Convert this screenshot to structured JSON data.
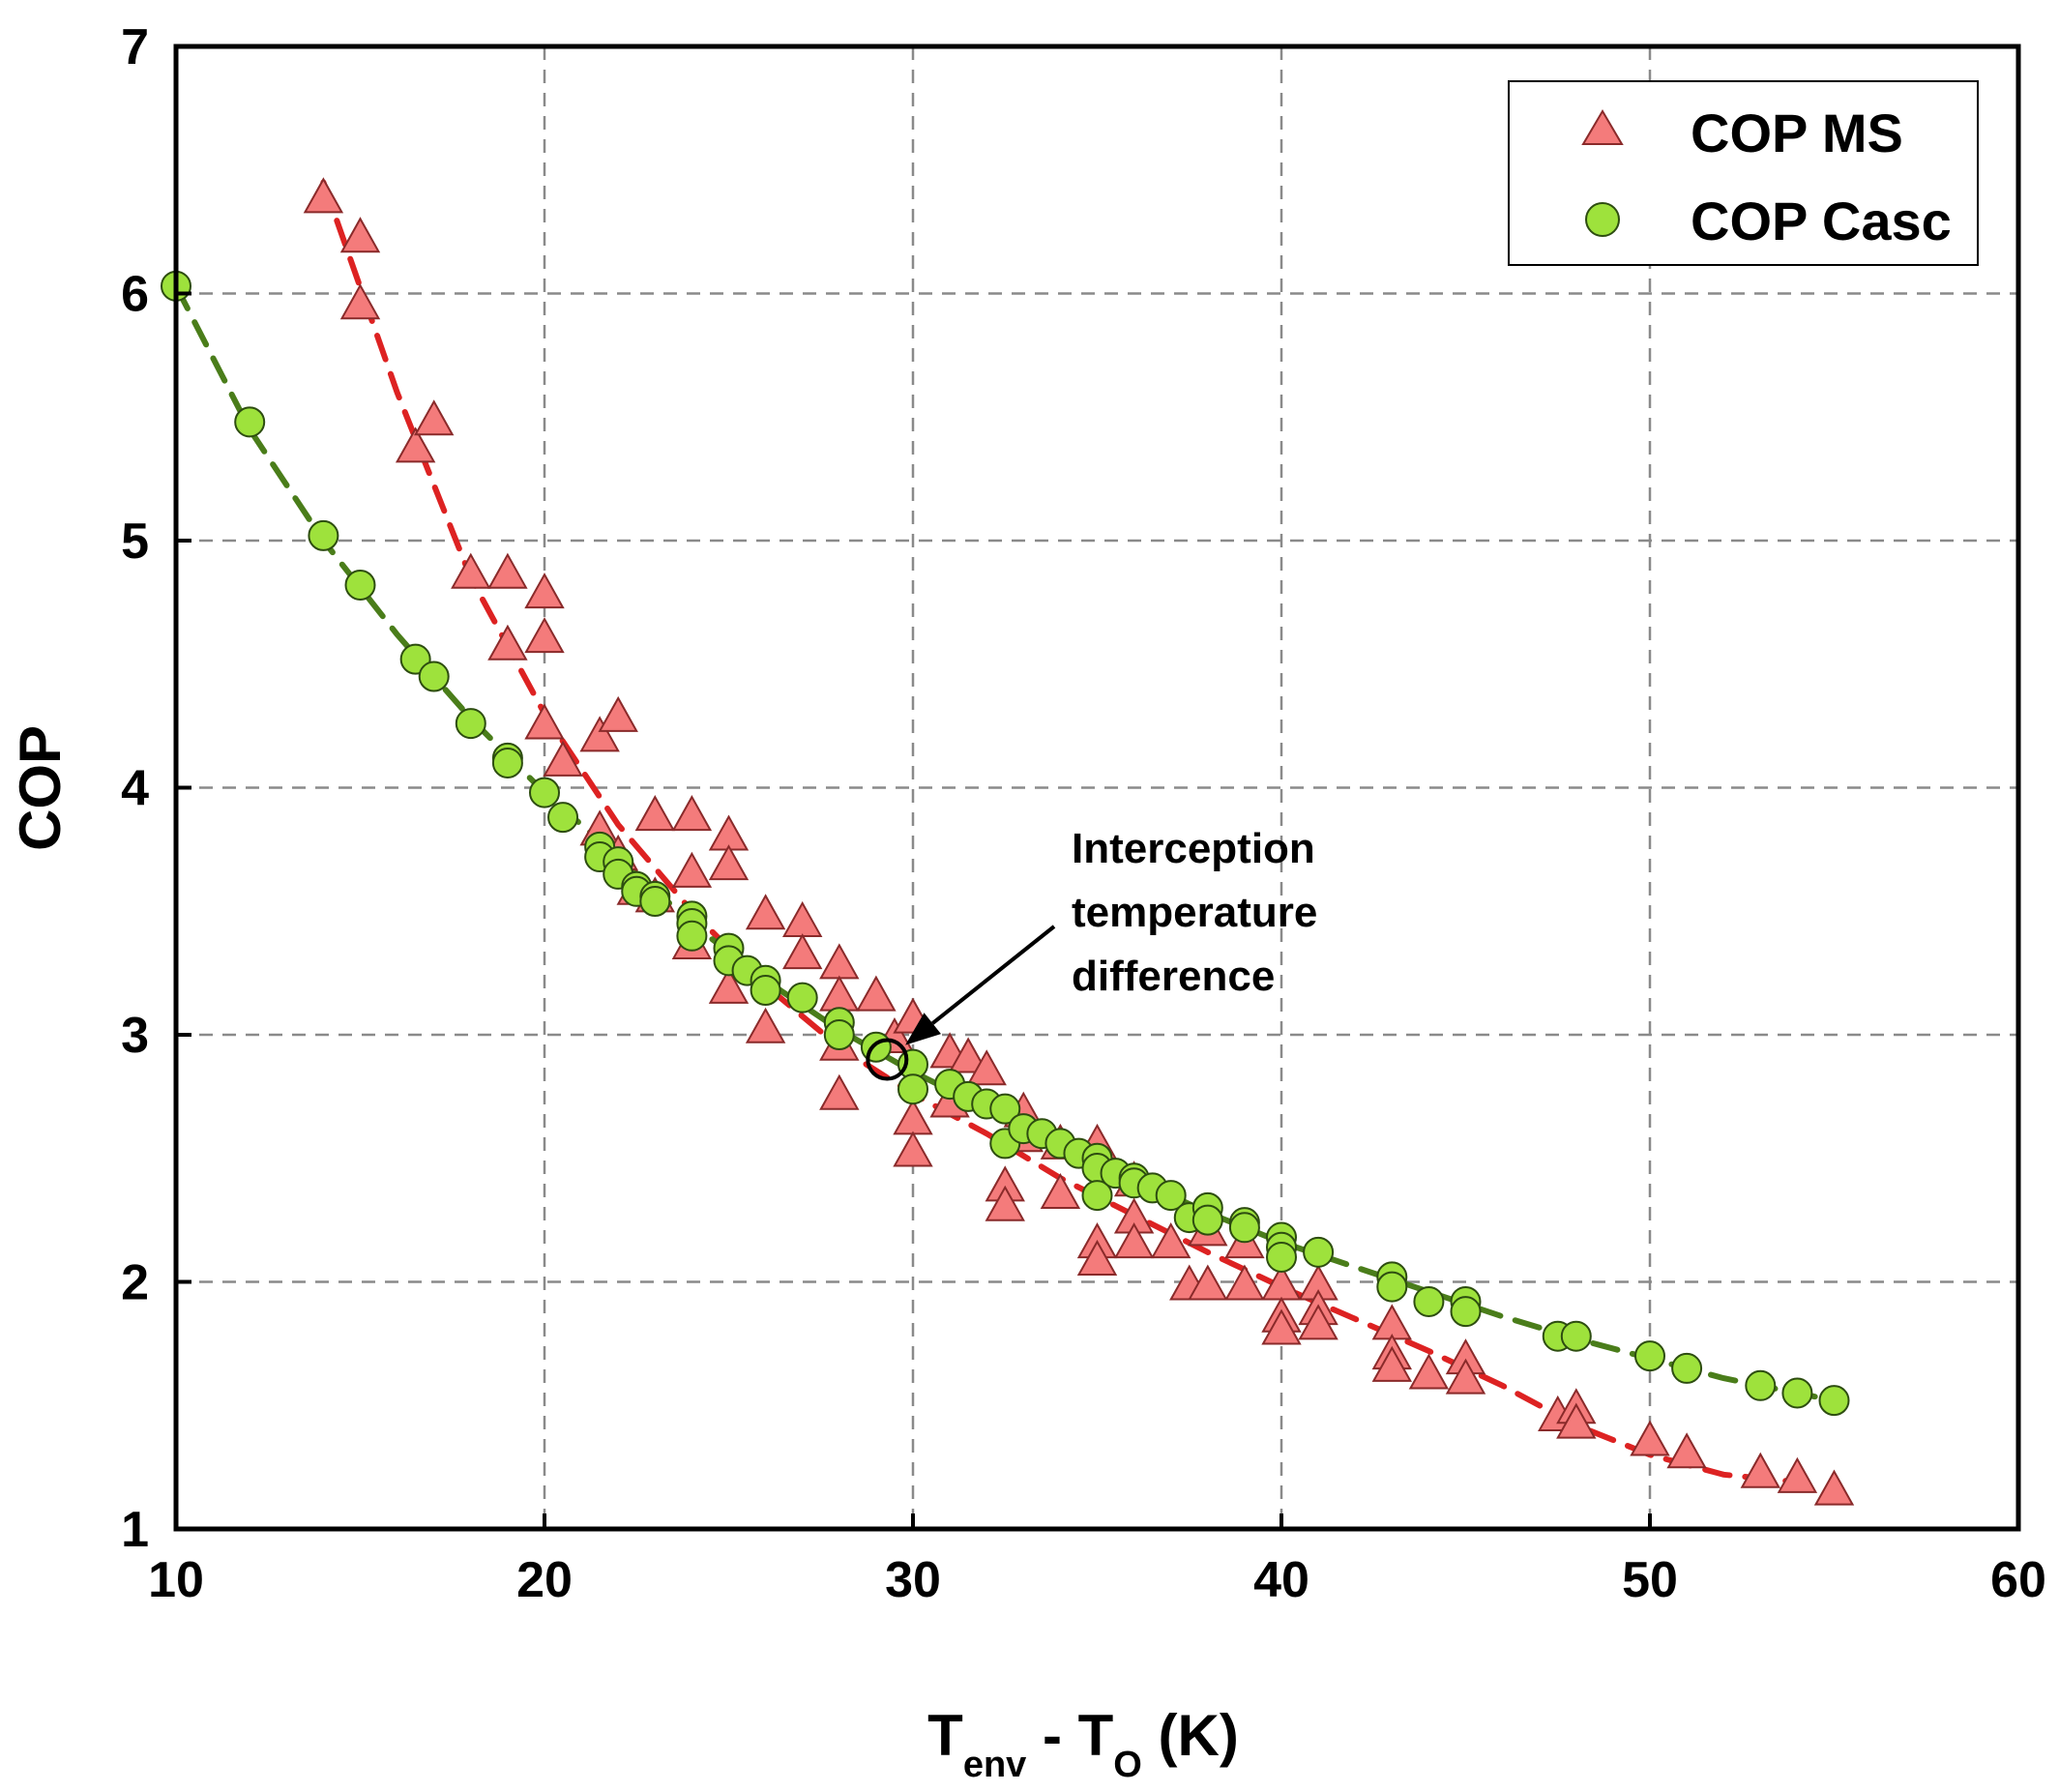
{
  "chart_data": {
    "type": "scatter",
    "title": "",
    "xlabel": {
      "main": "T",
      "sub1": "env",
      "mid": " - T",
      "sub2": "O",
      "tail": " (K)"
    },
    "ylabel": "COP",
    "xlim": [
      10,
      60
    ],
    "ylim": [
      1,
      7
    ],
    "xticks": [
      10,
      20,
      30,
      40,
      50,
      60
    ],
    "yticks": [
      1,
      2,
      3,
      4,
      5,
      6,
      7
    ],
    "grid": true,
    "legend_position": "top-right",
    "annotation": {
      "lines": [
        "Interception",
        "temperature",
        "difference"
      ],
      "point": [
        29.3,
        2.9
      ]
    },
    "series": [
      {
        "name": "COP MS",
        "marker": "triangle",
        "color": "#f47b7b",
        "trend_color": "#dd2222",
        "points": [
          [
            14,
            6.38
          ],
          [
            15,
            6.22
          ],
          [
            15,
            5.95
          ],
          [
            16.5,
            5.37
          ],
          [
            17,
            5.48
          ],
          [
            18,
            4.86
          ],
          [
            19,
            4.86
          ],
          [
            19,
            4.57
          ],
          [
            20,
            4.78
          ],
          [
            20,
            4.6
          ],
          [
            20,
            4.25
          ],
          [
            20.5,
            4.1
          ],
          [
            21.5,
            4.2
          ],
          [
            22,
            4.28
          ],
          [
            21.5,
            3.82
          ],
          [
            22,
            3.72
          ],
          [
            23,
            3.88
          ],
          [
            24,
            3.88
          ],
          [
            24,
            3.65
          ],
          [
            25,
            3.8
          ],
          [
            25,
            3.68
          ],
          [
            22.5,
            3.58
          ],
          [
            23,
            3.55
          ],
          [
            24,
            3.36
          ],
          [
            25,
            3.18
          ],
          [
            26,
            3.02
          ],
          [
            26,
            3.48
          ],
          [
            27,
            3.45
          ],
          [
            27,
            3.32
          ],
          [
            28,
            3.28
          ],
          [
            28,
            3.15
          ],
          [
            28,
            2.95
          ],
          [
            28,
            2.75
          ],
          [
            29,
            3.15
          ],
          [
            29.5,
            2.98
          ],
          [
            30,
            3.06
          ],
          [
            30,
            2.65
          ],
          [
            30,
            2.52
          ],
          [
            31,
            2.92
          ],
          [
            31,
            2.72
          ],
          [
            31.5,
            2.9
          ],
          [
            32,
            2.85
          ],
          [
            32.5,
            2.38
          ],
          [
            32.5,
            2.3
          ],
          [
            33,
            2.68
          ],
          [
            33,
            2.58
          ],
          [
            34,
            2.55
          ],
          [
            34,
            2.35
          ],
          [
            35,
            2.55
          ],
          [
            35,
            2.15
          ],
          [
            35,
            2.08
          ],
          [
            36,
            2.4
          ],
          [
            36,
            2.25
          ],
          [
            36,
            2.15
          ],
          [
            37,
            2.15
          ],
          [
            37.5,
            1.98
          ],
          [
            38,
            2.2
          ],
          [
            38,
            1.98
          ],
          [
            39,
            2.15
          ],
          [
            39,
            1.98
          ],
          [
            40,
            1.98
          ],
          [
            40,
            1.85
          ],
          [
            40,
            1.8
          ],
          [
            41,
            1.98
          ],
          [
            41,
            1.88
          ],
          [
            41,
            1.82
          ],
          [
            43,
            1.82
          ],
          [
            43,
            1.7
          ],
          [
            43,
            1.65
          ],
          [
            44,
            1.62
          ],
          [
            45,
            1.68
          ],
          [
            45,
            1.6
          ],
          [
            47.5,
            1.45
          ],
          [
            48,
            1.48
          ],
          [
            48,
            1.42
          ],
          [
            50,
            1.35
          ],
          [
            51,
            1.3
          ],
          [
            53,
            1.22
          ],
          [
            54,
            1.2
          ],
          [
            55,
            1.15
          ]
        ],
        "trend": [
          [
            14,
            6.45
          ],
          [
            16,
            5.6
          ],
          [
            18,
            4.85
          ],
          [
            20,
            4.3
          ],
          [
            22,
            3.85
          ],
          [
            24,
            3.5
          ],
          [
            26,
            3.2
          ],
          [
            28,
            2.95
          ],
          [
            30,
            2.76
          ],
          [
            32,
            2.6
          ],
          [
            34,
            2.42
          ],
          [
            36,
            2.27
          ],
          [
            38,
            2.12
          ],
          [
            40,
            1.98
          ],
          [
            42,
            1.85
          ],
          [
            44,
            1.72
          ],
          [
            46,
            1.58
          ],
          [
            48,
            1.42
          ],
          [
            50,
            1.3
          ],
          [
            52,
            1.22
          ],
          [
            54,
            1.19
          ]
        ]
      },
      {
        "name": "COP Casc",
        "marker": "circle",
        "color": "#9ee23c",
        "trend_color": "#4a7d1a",
        "points": [
          [
            10,
            6.03
          ],
          [
            12,
            5.48
          ],
          [
            14,
            5.02
          ],
          [
            15,
            4.82
          ],
          [
            16.5,
            4.52
          ],
          [
            17,
            4.45
          ],
          [
            18,
            4.26
          ],
          [
            19,
            4.12
          ],
          [
            19,
            4.1
          ],
          [
            20,
            3.98
          ],
          [
            20.5,
            3.88
          ],
          [
            21.5,
            3.76
          ],
          [
            21.5,
            3.72
          ],
          [
            22,
            3.7
          ],
          [
            22,
            3.65
          ],
          [
            22.5,
            3.6
          ],
          [
            22.5,
            3.58
          ],
          [
            23,
            3.56
          ],
          [
            23,
            3.54
          ],
          [
            24,
            3.48
          ],
          [
            24,
            3.45
          ],
          [
            24,
            3.4
          ],
          [
            25,
            3.35
          ],
          [
            25,
            3.3
          ],
          [
            25.5,
            3.26
          ],
          [
            26,
            3.22
          ],
          [
            26,
            3.18
          ],
          [
            27,
            3.15
          ],
          [
            28,
            3.05
          ],
          [
            28,
            3.0
          ],
          [
            29,
            2.95
          ],
          [
            30,
            2.88
          ],
          [
            30,
            2.78
          ],
          [
            31,
            2.8
          ],
          [
            31.5,
            2.75
          ],
          [
            32,
            2.72
          ],
          [
            32.5,
            2.7
          ],
          [
            32.5,
            2.56
          ],
          [
            33,
            2.62
          ],
          [
            33.5,
            2.6
          ],
          [
            34,
            2.56
          ],
          [
            34.5,
            2.52
          ],
          [
            35,
            2.5
          ],
          [
            35,
            2.46
          ],
          [
            35,
            2.35
          ],
          [
            35.5,
            2.44
          ],
          [
            36,
            2.42
          ],
          [
            36,
            2.4
          ],
          [
            36.5,
            2.38
          ],
          [
            37,
            2.35
          ],
          [
            37.5,
            2.26
          ],
          [
            38,
            2.3
          ],
          [
            38,
            2.25
          ],
          [
            39,
            2.24
          ],
          [
            39,
            2.22
          ],
          [
            40,
            2.18
          ],
          [
            40,
            2.14
          ],
          [
            40,
            2.1
          ],
          [
            41,
            2.12
          ],
          [
            43,
            2.02
          ],
          [
            43,
            1.98
          ],
          [
            44,
            1.92
          ],
          [
            45,
            1.92
          ],
          [
            45,
            1.88
          ],
          [
            47.5,
            1.78
          ],
          [
            48,
            1.78
          ],
          [
            50,
            1.7
          ],
          [
            51,
            1.65
          ],
          [
            53,
            1.58
          ],
          [
            54,
            1.55
          ],
          [
            55,
            1.52
          ]
        ],
        "trend": [
          [
            10,
            6.03
          ],
          [
            12,
            5.45
          ],
          [
            14,
            5.0
          ],
          [
            16,
            4.62
          ],
          [
            18,
            4.28
          ],
          [
            20,
            3.98
          ],
          [
            22,
            3.72
          ],
          [
            24,
            3.45
          ],
          [
            26,
            3.22
          ],
          [
            28,
            3.02
          ],
          [
            30,
            2.85
          ],
          [
            32,
            2.7
          ],
          [
            34,
            2.56
          ],
          [
            36,
            2.42
          ],
          [
            38,
            2.28
          ],
          [
            40,
            2.16
          ],
          [
            42,
            2.06
          ],
          [
            44,
            1.96
          ],
          [
            46,
            1.86
          ],
          [
            48,
            1.77
          ],
          [
            50,
            1.69
          ],
          [
            52,
            1.61
          ],
          [
            54,
            1.55
          ],
          [
            55,
            1.52
          ]
        ]
      }
    ]
  }
}
